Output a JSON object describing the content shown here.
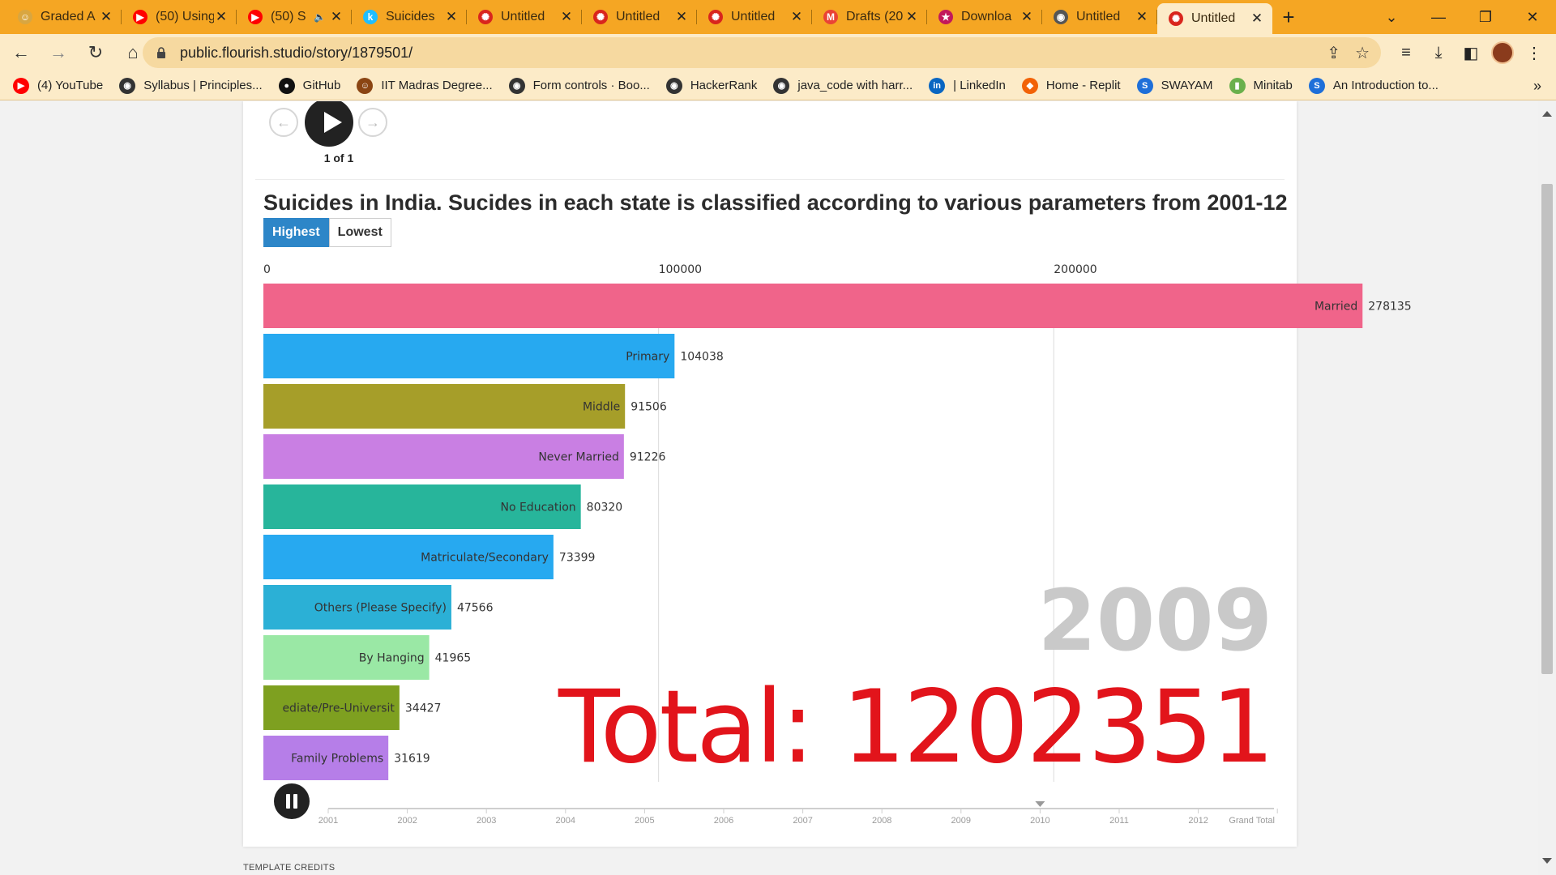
{
  "browser": {
    "tabs": [
      {
        "title": "Graded A",
        "icon": "smiley-icon",
        "color": "#d9a640"
      },
      {
        "title": "(50) Using",
        "icon": "youtube-icon",
        "color": "#ff0000"
      },
      {
        "title": "(50) S",
        "icon": "youtube-icon",
        "color": "#ff0000",
        "muted": true
      },
      {
        "title": "Suicides",
        "icon": "kaggle-icon",
        "color": "#20beff"
      },
      {
        "title": "Untitled",
        "icon": "flourish-icon",
        "color": "#d9251d"
      },
      {
        "title": "Untitled",
        "icon": "flourish-icon",
        "color": "#d9251d"
      },
      {
        "title": "Untitled",
        "icon": "flourish-icon",
        "color": "#d9251d"
      },
      {
        "title": "Drafts (20",
        "icon": "gmail-icon",
        "color": "#ea4335"
      },
      {
        "title": "Downloa",
        "icon": "star-icon",
        "color": "#c2185b"
      },
      {
        "title": "Untitled",
        "icon": "globe-icon",
        "color": "#555555"
      },
      {
        "title": "Untitled",
        "icon": "flourish-icon",
        "color": "#d9251d",
        "active": true
      }
    ],
    "url": "public.flourish.studio/story/1879501/",
    "bookmarks": [
      {
        "label": "(4) YouTube",
        "icon": "youtube-icon",
        "color": "#ff0000"
      },
      {
        "label": "Syllabus | Principles...",
        "icon": "globe-icon",
        "color": "#333333"
      },
      {
        "label": "GitHub",
        "icon": "github-icon",
        "color": "#111111"
      },
      {
        "label": "IIT Madras Degree...",
        "icon": "iitm-icon",
        "color": "#8b4513"
      },
      {
        "label": "Form controls · Boo...",
        "icon": "globe-icon",
        "color": "#333333"
      },
      {
        "label": "HackerRank",
        "icon": "globe-icon",
        "color": "#333333"
      },
      {
        "label": "java_code with harr...",
        "icon": "globe-icon",
        "color": "#333333"
      },
      {
        "label": "| LinkedIn",
        "icon": "linkedin-icon",
        "color": "#0a66c2"
      },
      {
        "label": "Home - Replit",
        "icon": "replit-icon",
        "color": "#f26207"
      },
      {
        "label": "SWAYAM",
        "icon": "swayam-icon",
        "color": "#1e6fd9"
      },
      {
        "label": "Minitab",
        "icon": "minitab-icon",
        "color": "#6ab04c"
      },
      {
        "label": "An Introduction to...",
        "icon": "swayam-icon",
        "color": "#1e6fd9"
      }
    ]
  },
  "story": {
    "counter": "1 of 1"
  },
  "toggle": {
    "highest": "Highest",
    "lowest": "Lowest"
  },
  "credits": "TEMPLATE CREDITS",
  "chart_data": {
    "type": "bar",
    "orientation": "horizontal",
    "title": "Suicides in India. Sucides in each state is classified according to various parameters from 2001-12",
    "current_year": "2009",
    "total_label": "Total: 1202351",
    "x_ticks": [
      0,
      100000,
      200000
    ],
    "x_tick_labels": [
      "0",
      "100000",
      "200000"
    ],
    "xlim": [
      0,
      283000
    ],
    "grid": true,
    "categories": [
      "Married",
      "Primary",
      "Middle",
      "Never Married",
      "No Education",
      "Matriculate/Secondary",
      "Others (Please Specify)",
      "By Hanging",
      "Hr. Secondary/Intermediate/Pre-Universit",
      "Family Problems"
    ],
    "display_labels": [
      "Married",
      "Primary",
      "Middle",
      "Never Married",
      "No Education",
      "Matriculate/Secondary",
      "Others (Please Specify)",
      "By Hanging",
      "ediate/Pre-Universit",
      "Family Problems"
    ],
    "value_labels": [
      "278135",
      "104038",
      "91506",
      "91226",
      "80320",
      "73399",
      "47566",
      "41965",
      "34427",
      "31619"
    ],
    "values": [
      278135,
      104038,
      91506,
      91226,
      80320,
      73399,
      47566,
      41965,
      34427,
      31619
    ],
    "colors": [
      "#f0648a",
      "#27a9f0",
      "#a69e29",
      "#c97fe3",
      "#27b59b",
      "#27a9f0",
      "#2bb0d6",
      "#9ae8a5",
      "#7ea020",
      "#b67ee8"
    ],
    "timeline": [
      "2001",
      "2002",
      "2003",
      "2004",
      "2005",
      "2006",
      "2007",
      "2008",
      "2009",
      "2010",
      "2011",
      "2012",
      "Grand Total"
    ],
    "timeline_marker": "2010"
  }
}
